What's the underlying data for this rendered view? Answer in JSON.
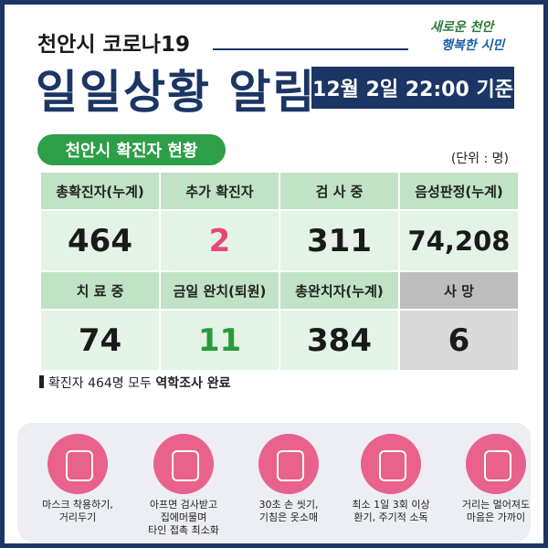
{
  "header": {
    "subtitle": "천안시 코로나19",
    "title": "일일상황 알림",
    "date": "12월 2일 22:00 기준",
    "logo_top": "새로운 천안",
    "logo_bottom": "행복한 시민"
  },
  "section": {
    "label": "천안시 확진자 현황",
    "unit": "(단위 : 명)"
  },
  "table": {
    "rows": [
      [
        "총확진자(누계)",
        "추가 확진자",
        "검 사 중",
        "음성판정(누계)"
      ],
      [
        "464",
        "2",
        "311",
        "74,208"
      ],
      [
        "치 료 중",
        "금일 완치(퇴원)",
        "총완치자(누계)",
        "사 망"
      ],
      [
        "74",
        "11",
        "384",
        "6"
      ]
    ]
  },
  "footnote": {
    "text": "확진자 464명 모두 ",
    "bold": "역학조사 완료"
  },
  "tips": [
    {
      "lines": [
        "마스크 착용하기,",
        "거리두기"
      ]
    },
    {
      "lines": [
        "아프면 검사받고",
        "집에머물며",
        "타인 접촉 최소화"
      ]
    },
    {
      "lines": [
        "30초 손 씻기,",
        "기침은 옷소매"
      ]
    },
    {
      "lines": [
        "최소 1일 3회 이상",
        "환기, 주기적 소독"
      ]
    },
    {
      "lines": [
        "거리는 멀어져도",
        "마음은 가까이"
      ]
    }
  ]
}
